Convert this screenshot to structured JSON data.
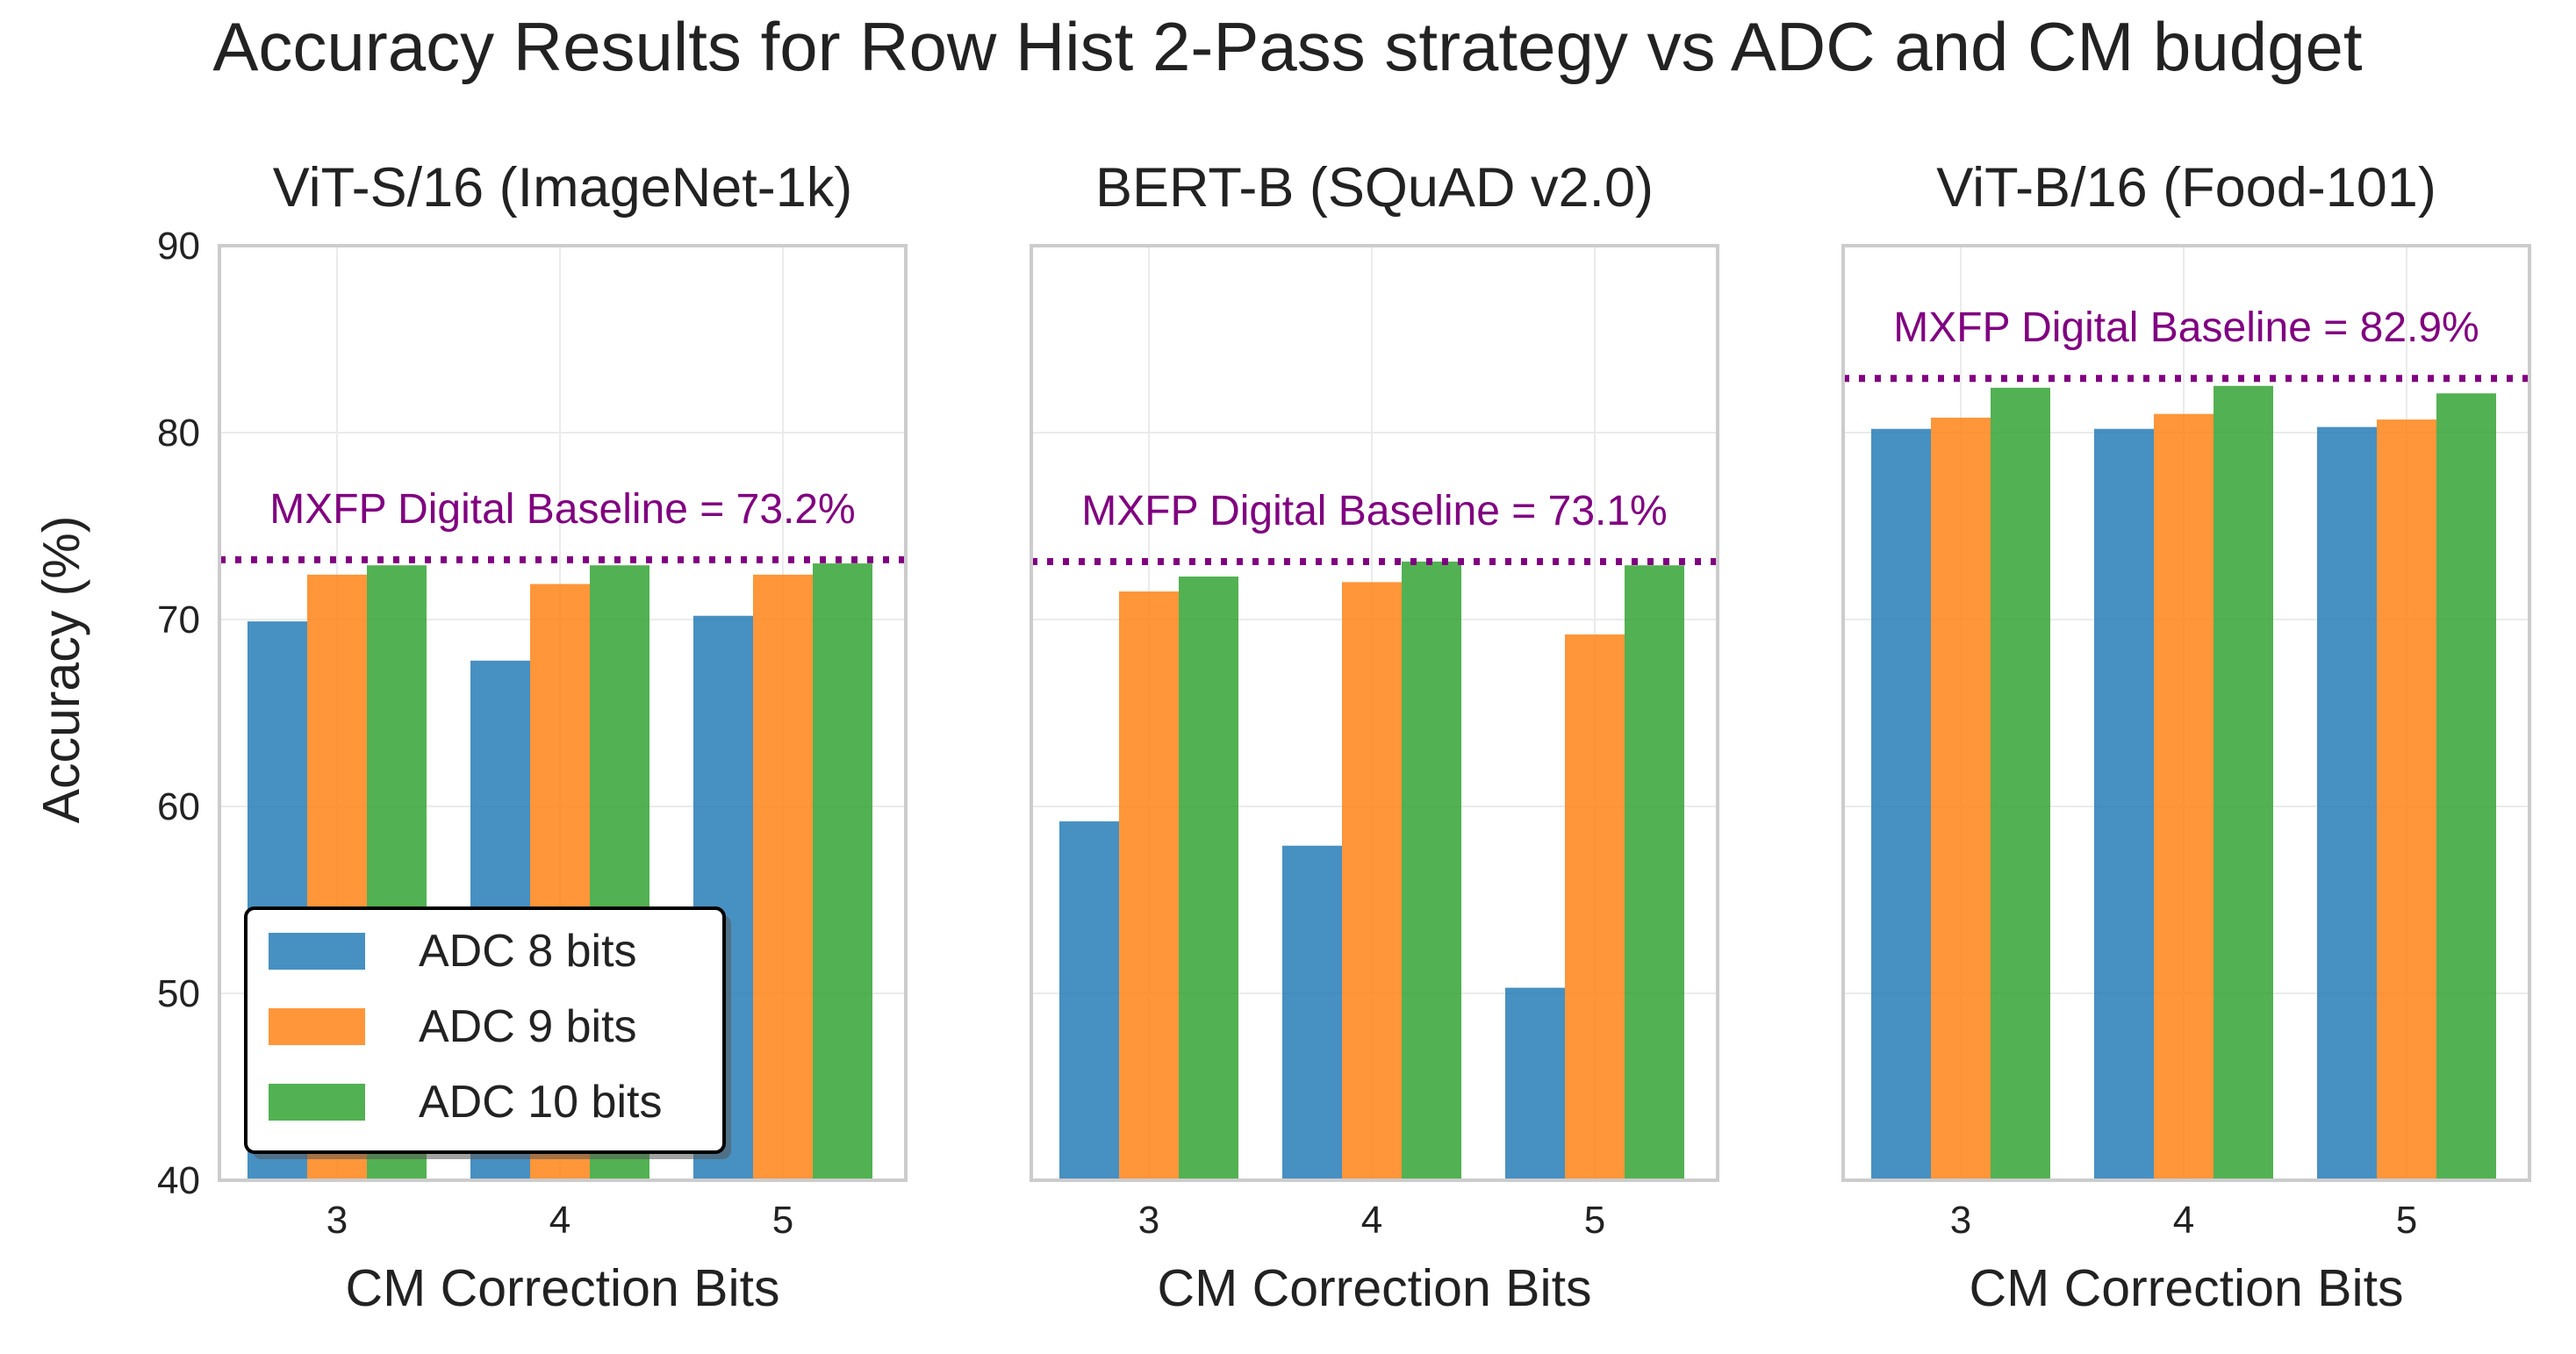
{
  "chart_data": {
    "type": "bar",
    "title": "Accuracy Results for Row Hist 2-Pass strategy vs ADC and CM budget",
    "ylabel": "Accuracy (%)",
    "ylim": [
      40,
      90
    ],
    "yticks": [
      40,
      50,
      60,
      70,
      80,
      90
    ],
    "legend": {
      "placement": "lower-left",
      "entries": [
        "ADC 8 bits",
        "ADC 9 bits",
        "ADC 10 bits"
      ]
    },
    "colors": [
      "#1f77b4",
      "#ff7f0e",
      "#2ca02c"
    ],
    "baseline_color": "#800080",
    "panels": [
      {
        "title": "ViT-S/16 (ImageNet-1k)",
        "xlabel": "CM Correction Bits",
        "categories": [
          "3",
          "4",
          "5"
        ],
        "series": [
          {
            "name": "ADC 8 bits",
            "values": [
              69.9,
              67.8,
              70.2
            ]
          },
          {
            "name": "ADC 9 bits",
            "values": [
              72.4,
              71.9,
              72.4
            ]
          },
          {
            "name": "ADC 10 bits",
            "values": [
              72.9,
              72.9,
              73.0
            ]
          }
        ],
        "baseline": {
          "value": 73.2,
          "label": "MXFP Digital Baseline = 73.2%"
        }
      },
      {
        "title": "BERT-B (SQuAD v2.0)",
        "xlabel": "CM Correction Bits",
        "categories": [
          "3",
          "4",
          "5"
        ],
        "series": [
          {
            "name": "ADC 8 bits",
            "values": [
              59.2,
              57.9,
              50.3
            ]
          },
          {
            "name": "ADC 9 bits",
            "values": [
              71.5,
              72.0,
              69.2
            ]
          },
          {
            "name": "ADC 10 bits",
            "values": [
              72.3,
              73.1,
              72.9
            ]
          }
        ],
        "baseline": {
          "value": 73.1,
          "label": "MXFP Digital Baseline = 73.1%"
        }
      },
      {
        "title": "ViT-B/16 (Food-101)",
        "xlabel": "CM Correction Bits",
        "categories": [
          "3",
          "4",
          "5"
        ],
        "series": [
          {
            "name": "ADC 8 bits",
            "values": [
              80.2,
              80.2,
              80.3
            ]
          },
          {
            "name": "ADC 9 bits",
            "values": [
              80.8,
              81.0,
              80.7
            ]
          },
          {
            "name": "ADC 10 bits",
            "values": [
              82.4,
              82.5,
              82.1
            ]
          }
        ],
        "baseline": {
          "value": 82.9,
          "label": "MXFP Digital Baseline = 82.9%"
        }
      }
    ]
  }
}
